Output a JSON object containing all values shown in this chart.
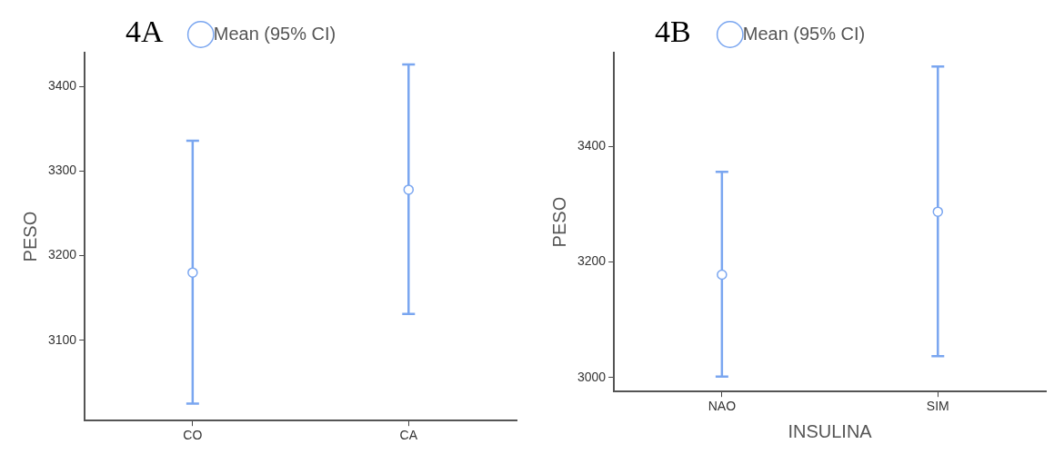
{
  "chart_data": [
    {
      "type": "scatter",
      "title": "4A",
      "ylabel": "PESO",
      "categories": [
        "CO",
        "CA"
      ],
      "ylim": [
        3005,
        3440
      ],
      "yticks": [
        3100,
        3200,
        3300,
        3400
      ],
      "grid": false,
      "legend": "top",
      "marker": "circle",
      "series": [
        {
          "name": "Mean (95% CI)",
          "color": "#7aa6f0",
          "values": [
            3180,
            3278
          ],
          "errors": [
            [
              3025,
              3336
            ],
            [
              3131,
              3426
            ]
          ]
        }
      ]
    },
    {
      "type": "scatter",
      "title": "4B",
      "xlabel": "INSULINA",
      "ylabel": "PESO",
      "categories": [
        "NAO",
        "SIM"
      ],
      "ylim": [
        2976,
        3562
      ],
      "yticks": [
        3000,
        3200,
        3400
      ],
      "grid": false,
      "legend": "top",
      "marker": "circle",
      "series": [
        {
          "name": "Mean (95% CI)",
          "color": "#7aa6f0",
          "values": [
            3178,
            3287
          ],
          "errors": [
            [
              3002,
              3356
            ],
            [
              3037,
              3538
            ]
          ]
        }
      ]
    }
  ]
}
